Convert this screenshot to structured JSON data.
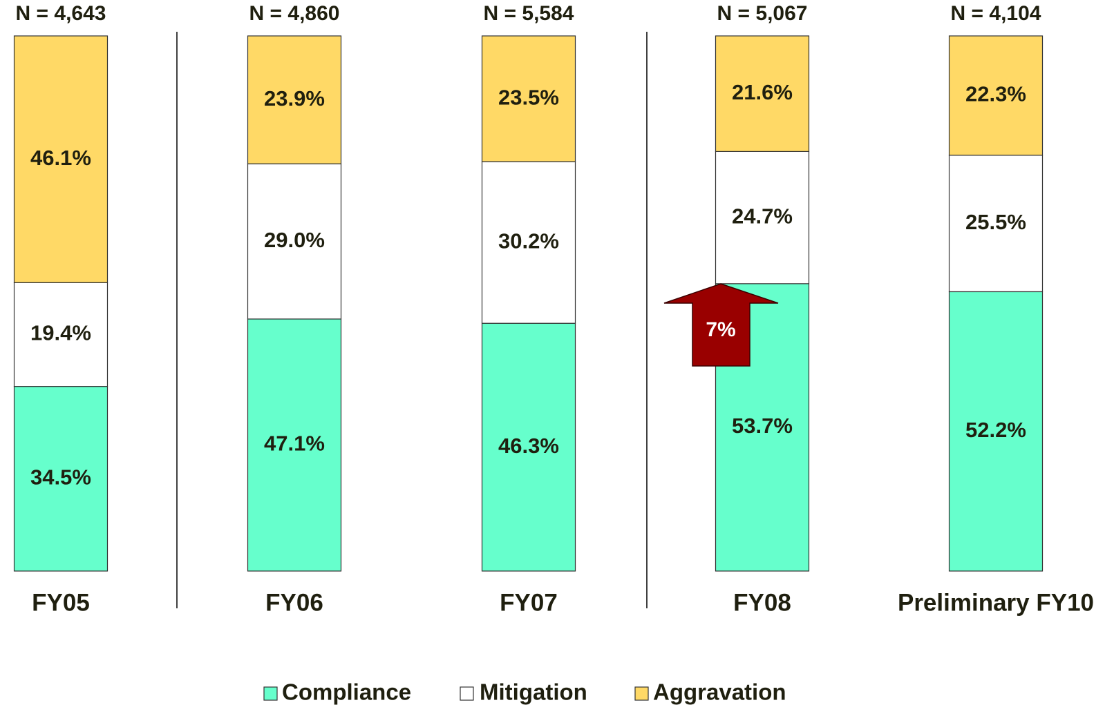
{
  "chart_data": {
    "type": "stacked_bar",
    "categories": [
      "FY05",
      "FY06",
      "FY07",
      "FY08",
      "Preliminary FY10"
    ],
    "n_labels": [
      "N = 4,643",
      "N = 4,860",
      "N = 5,584",
      "N = 5,067",
      "N = 4,104"
    ],
    "series": [
      {
        "name": "Compliance",
        "color": "#66ffcc",
        "values": [
          34.5,
          47.1,
          46.3,
          53.7,
          52.2
        ],
        "value_labels": [
          "34.5%",
          "47.1%",
          "46.3%",
          "53.7%",
          "52.2%"
        ]
      },
      {
        "name": "Mitigation",
        "color": "#ffffff",
        "values": [
          19.4,
          29.0,
          30.2,
          24.7,
          25.5
        ],
        "value_labels": [
          "19.4%",
          "29.0%",
          "30.2%",
          "24.7%",
          "25.5%"
        ]
      },
      {
        "name": "Aggravation",
        "color": "#ffd966",
        "values": [
          46.1,
          23.9,
          23.5,
          21.6,
          22.3
        ],
        "value_labels": [
          "46.1%",
          "23.9%",
          "23.5%",
          "21.6%",
          "22.3%"
        ]
      }
    ],
    "ylim": [
      0,
      100
    ],
    "arrow_label": "7%"
  }
}
